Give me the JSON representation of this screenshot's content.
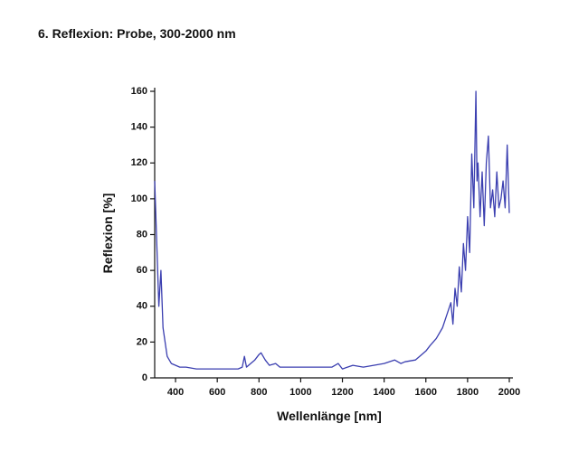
{
  "chart_data": {
    "type": "line",
    "title": "6.  Reflexion: Probe, 300-2000 nm",
    "xlabel": "Wellenlänge [nm]",
    "ylabel": "Reflexion [%]",
    "color": "#3b3fb0",
    "x": [
      300,
      310,
      320,
      330,
      340,
      350,
      360,
      380,
      400,
      420,
      450,
      500,
      550,
      600,
      650,
      700,
      720,
      730,
      740,
      760,
      780,
      800,
      810,
      830,
      850,
      880,
      900,
      950,
      1000,
      1050,
      1100,
      1150,
      1180,
      1200,
      1250,
      1300,
      1350,
      1400,
      1450,
      1480,
      1500,
      1550,
      1580,
      1600,
      1620,
      1650,
      1680,
      1700,
      1720,
      1730,
      1740,
      1750,
      1760,
      1770,
      1780,
      1790,
      1800,
      1810,
      1820,
      1830,
      1840,
      1845,
      1850,
      1860,
      1870,
      1880,
      1890,
      1900,
      1910,
      1920,
      1930,
      1940,
      1950,
      1960,
      1970,
      1980,
      1990,
      2000
    ],
    "values": [
      110,
      75,
      40,
      60,
      28,
      20,
      12,
      8,
      7,
      6,
      6,
      5,
      5,
      5,
      5,
      5,
      6,
      12,
      6,
      8,
      10,
      13,
      14,
      10,
      7,
      8,
      6,
      6,
      6,
      6,
      6,
      6,
      8,
      5,
      7,
      6,
      7,
      8,
      10,
      8,
      9,
      10,
      13,
      15,
      18,
      22,
      28,
      35,
      42,
      30,
      50,
      40,
      62,
      48,
      75,
      60,
      90,
      70,
      125,
      95,
      160,
      110,
      120,
      90,
      115,
      85,
      120,
      135,
      95,
      105,
      90,
      115,
      95,
      100,
      110,
      95,
      130,
      92
    ],
    "xlim": [
      300,
      2000
    ],
    "ylim": [
      0,
      160
    ],
    "xticks": [
      400,
      600,
      800,
      1000,
      1200,
      1400,
      1600,
      1800,
      2000
    ],
    "yticks": [
      0,
      20,
      40,
      60,
      80,
      100,
      120,
      140,
      160
    ]
  }
}
